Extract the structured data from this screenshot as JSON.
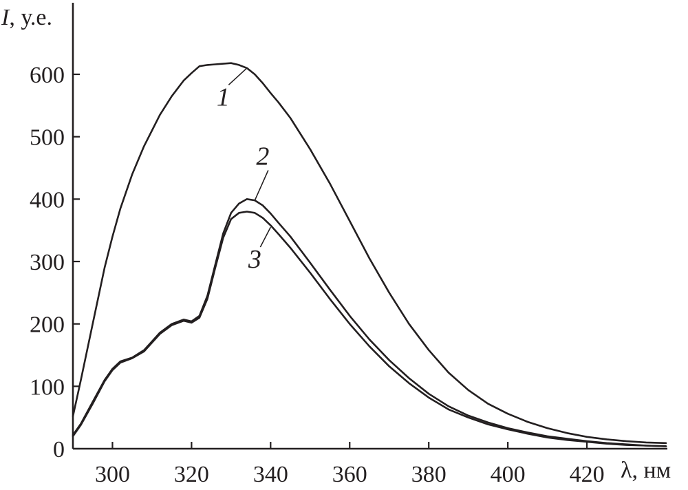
{
  "chart_data": {
    "type": "line",
    "ylabel": "I, у.е.",
    "ylabel_var": "I",
    "ylabel_unit": ", у.е.",
    "xlabel": "λ, нм",
    "xlim": [
      290,
      440
    ],
    "ylim": [
      0,
      700
    ],
    "x_ticks": [
      300,
      320,
      340,
      360,
      380,
      400,
      420
    ],
    "y_ticks": [
      0,
      100,
      200,
      300,
      400,
      500,
      600
    ],
    "grid": false,
    "series": [
      {
        "name": "1",
        "x": [
          290,
          292,
          295,
          298,
          300,
          302,
          305,
          308,
          310,
          312,
          315,
          318,
          320,
          322,
          324,
          326,
          328,
          330,
          332,
          334,
          336,
          338,
          340,
          342,
          345,
          350,
          355,
          360,
          365,
          370,
          375,
          380,
          385,
          390,
          395,
          400,
          405,
          410,
          415,
          420,
          425,
          430,
          435,
          440
        ],
        "y": [
          52,
          110,
          200,
          290,
          340,
          385,
          440,
          485,
          510,
          535,
          565,
          590,
          602,
          613,
          615,
          616,
          617,
          618,
          615,
          610,
          600,
          586,
          570,
          555,
          530,
          480,
          425,
          365,
          305,
          250,
          200,
          158,
          122,
          94,
          72,
          56,
          43,
          33,
          25,
          19,
          15,
          12,
          10,
          9
        ]
      },
      {
        "name": "2",
        "x": [
          290,
          292,
          295,
          298,
          300,
          302,
          305,
          308,
          310,
          312,
          315,
          318,
          320,
          322,
          324,
          326,
          328,
          330,
          332,
          334,
          336,
          338,
          340,
          342,
          345,
          350,
          355,
          360,
          365,
          370,
          375,
          380,
          385,
          390,
          395,
          400,
          405,
          410,
          415,
          420,
          425,
          430,
          435,
          440
        ],
        "y": [
          22,
          40,
          75,
          110,
          128,
          140,
          146,
          158,
          172,
          186,
          200,
          207,
          204,
          213,
          245,
          295,
          345,
          378,
          393,
          400,
          398,
          390,
          377,
          362,
          340,
          298,
          255,
          213,
          175,
          142,
          113,
          88,
          68,
          53,
          42,
          33,
          26,
          20,
          16,
          12,
          9,
          7,
          5,
          4
        ]
      },
      {
        "name": "3",
        "x": [
          290,
          292,
          295,
          298,
          300,
          302,
          305,
          308,
          310,
          312,
          315,
          318,
          320,
          322,
          324,
          326,
          328,
          330,
          332,
          334,
          336,
          338,
          340,
          342,
          345,
          350,
          355,
          360,
          365,
          370,
          375,
          380,
          385,
          390,
          395,
          400,
          405,
          410,
          415,
          420,
          425,
          430,
          435,
          440
        ],
        "y": [
          20,
          38,
          72,
          108,
          126,
          138,
          145,
          156,
          170,
          184,
          198,
          205,
          202,
          210,
          240,
          290,
          338,
          368,
          378,
          380,
          378,
          370,
          358,
          344,
          322,
          282,
          240,
          200,
          164,
          132,
          105,
          82,
          63,
          50,
          39,
          31,
          24,
          18,
          14,
          11,
          8,
          6,
          5,
          4
        ]
      }
    ],
    "curve_labels": [
      {
        "text": "1",
        "series": "1",
        "point": [
          334,
          610
        ],
        "label_at": [
          328,
          550
        ]
      },
      {
        "text": "2",
        "series": "2",
        "point": [
          336,
          398
        ],
        "label_at": [
          338,
          455
        ]
      },
      {
        "text": "3",
        "series": "3",
        "point": [
          340,
          355
        ],
        "label_at": [
          336,
          290
        ]
      }
    ]
  }
}
